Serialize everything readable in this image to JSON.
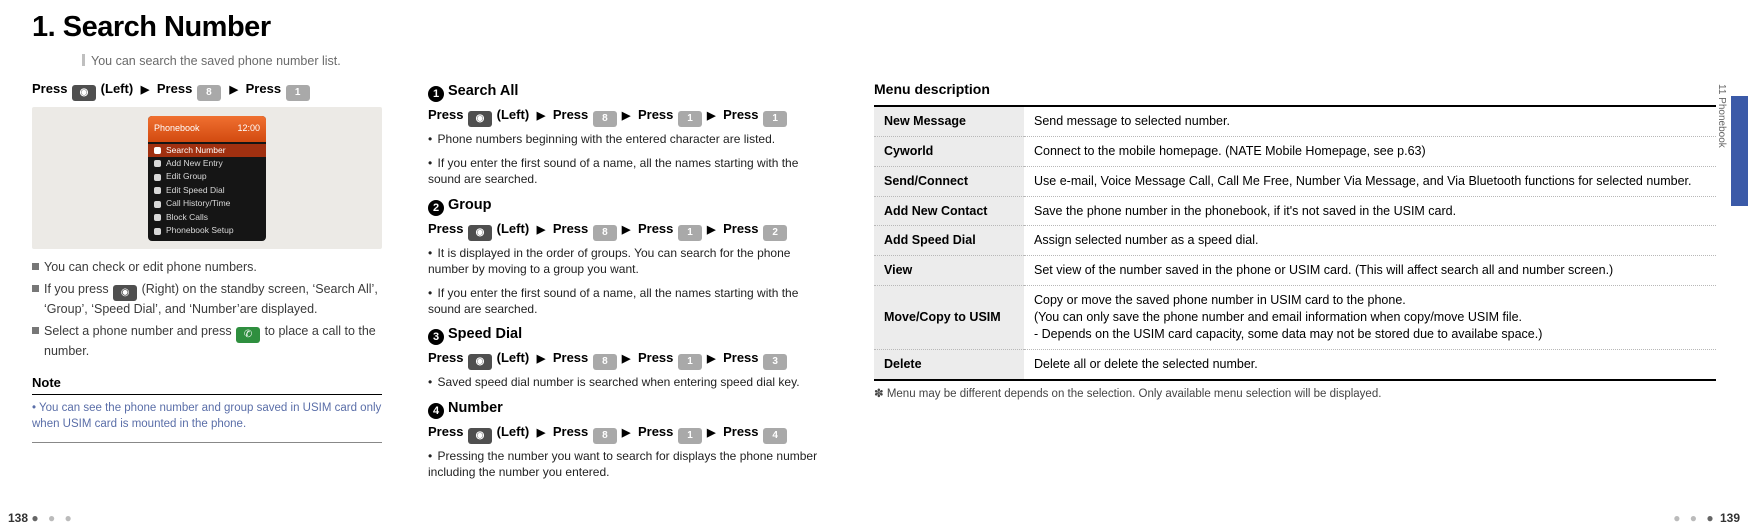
{
  "heading": "1. Search Number",
  "subtitle": "You can search the saved phone number list.",
  "section_label": "11 Phonebook",
  "colors": {
    "accent_tab": "#3b5aa8",
    "orange_header": "#e35a1a",
    "key_grey": "#a9a9a9",
    "key_dark": "#4f4f4f",
    "key_green": "#2f8f3f",
    "note_text": "#5a6ea8",
    "table_header_bg": "#ececec"
  },
  "left": {
    "seq_parts": [
      "Press",
      " (Left) ",
      " Press ",
      " Press "
    ],
    "phone_header": "Phonebook",
    "phone_time": "12:00",
    "phone_items": [
      {
        "label": "Search Number",
        "active": true
      },
      {
        "label": "Add New Entry",
        "active": false
      },
      {
        "label": "Edit Group",
        "active": false
      },
      {
        "label": "Edit Speed Dial",
        "active": false
      },
      {
        "label": "Call History/Time",
        "active": false
      },
      {
        "label": "Block Calls",
        "active": false
      },
      {
        "label": "Phonebook Setup",
        "active": false
      }
    ],
    "bullets": [
      "You can check or edit phone numbers.",
      "If you press   (Right) on the standby screen, 'Search All', 'Group', 'Speed Dial', and 'Number'are displayed.",
      "Select a phone number and press   to place a call to the number."
    ],
    "note_title": "Note",
    "note_body": "You can see the phone number and group saved in USIM card only when USIM card is mounted in the phone."
  },
  "middle": {
    "s1": {
      "num": "1",
      "title": "Search All",
      "seq": [
        "Press",
        " (Left) ",
        " Press ",
        " Press ",
        " Press "
      ],
      "keys": [
        "",
        "8",
        "1",
        "1"
      ],
      "paras": [
        "Phone numbers beginning with the entered character are listed.",
        "If you enter the first sound of a name, all the names starting with the sound are searched."
      ]
    },
    "s2": {
      "num": "2",
      "title": "Group",
      "seq": [
        "Press",
        " (Left) ",
        " Press ",
        " Press ",
        " Press "
      ],
      "keys": [
        "",
        "8",
        "1",
        "2"
      ],
      "paras": [
        "It is displayed in the order of groups. You can search for the phone number by moving to a group you want.",
        "If you enter the first sound of a name, all the names starting with the sound are searched."
      ]
    },
    "s3": {
      "num": "3",
      "title": "Speed Dial",
      "seq": [
        "Press",
        " (Left) ",
        " Press ",
        " Press ",
        " Press "
      ],
      "keys": [
        "",
        "8",
        "1",
        "3"
      ],
      "paras": [
        "Saved speed dial number is searched when entering speed dial key."
      ]
    },
    "s4": {
      "num": "4",
      "title": "Number",
      "seq": [
        "Press",
        " (Left) ",
        " Press ",
        " Press ",
        " Press "
      ],
      "keys": [
        "",
        "8",
        "1",
        "4"
      ],
      "paras": [
        "Pressing the number you want to search for displays the phone number including the number you entered."
      ]
    }
  },
  "right": {
    "title": "Menu description",
    "rows": [
      {
        "k": "New Message",
        "v": "Send message to selected number."
      },
      {
        "k": "Cyworld",
        "v": "Connect to the mobile homepage. (NATE Mobile Homepage, see p.63)"
      },
      {
        "k": "Send/Connect",
        "v": "Use e-mail, Voice Message Call, Call Me Free, Number Via Message, and Via Bluetooth functions for selected number."
      },
      {
        "k": "Add New Contact",
        "v": "Save the phone number in the phonebook, if it's not saved in the USIM card."
      },
      {
        "k": "Add Speed Dial",
        "v": "Assign selected number as a speed dial."
      },
      {
        "k": "View",
        "v": "Set view of the number saved in the phone or USIM card. (This will affect search all and number screen.)"
      },
      {
        "k": "Move/Copy to USIM",
        "v": "Copy or move the saved phone number in USIM card to the phone.\n(You can only save the phone number and email information when copy/move USIM file.\n- Depends on the USIM card capacity, some data may not be stored due to availabe space.)"
      },
      {
        "k": "Delete",
        "v": "Delete all or delete the selected number."
      }
    ],
    "footnote": "✽ Menu may be different depends on the selection. Only available menu selection will be displayed."
  },
  "page_left": "138",
  "page_right": "139"
}
